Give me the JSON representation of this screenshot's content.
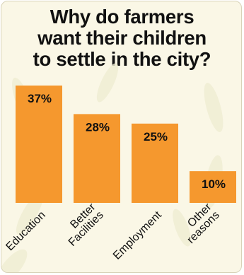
{
  "title_lines": [
    "Why do farmers",
    "want their children",
    "to settle in the city?"
  ],
  "colors": {
    "bar": "#f5982e",
    "background": "#faf7e6",
    "leaf": "#efecd2",
    "text": "#111111"
  },
  "chart_data": {
    "type": "bar",
    "title": "Why do farmers want their children to settle in the city?",
    "categories": [
      "Education",
      "Better Facilities",
      "Employment",
      "Other reasons"
    ],
    "tick_labels": [
      [
        "Education"
      ],
      [
        "Better",
        "Facilities"
      ],
      [
        "Employment"
      ],
      [
        "Other",
        "reasons"
      ]
    ],
    "values": [
      37,
      28,
      25,
      10
    ],
    "data_labels": [
      "37%",
      "28%",
      "25%",
      "10%"
    ],
    "unit": "%",
    "ylim": [
      0,
      37
    ],
    "xlabel": "",
    "ylabel": "",
    "grid": false,
    "legend": "none"
  }
}
